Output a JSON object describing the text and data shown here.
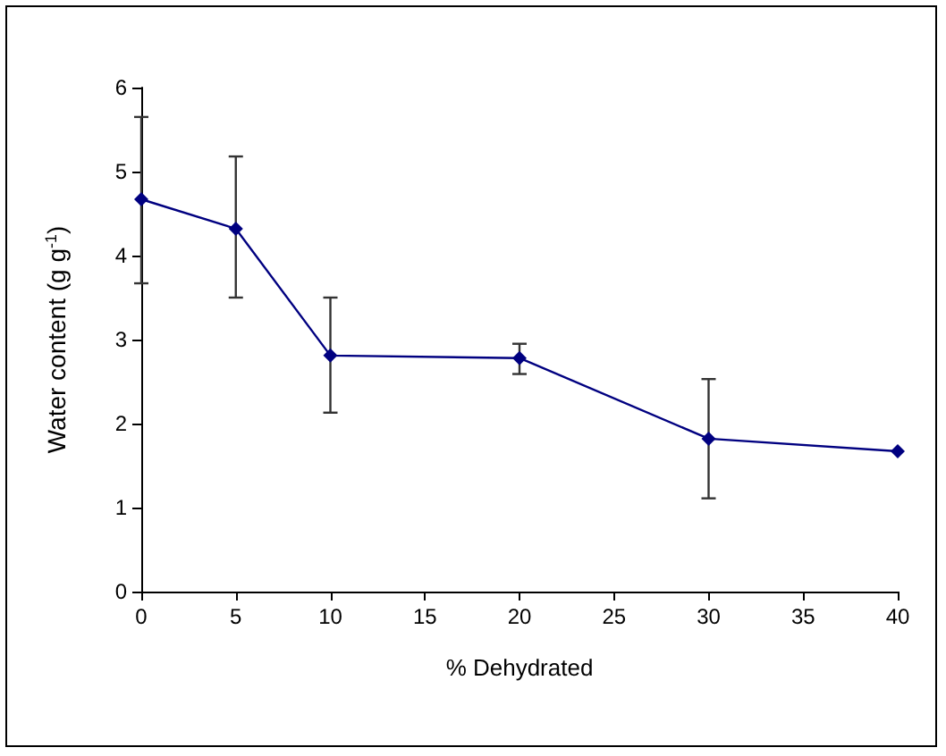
{
  "chart_data": {
    "type": "line",
    "xlabel": "% Dehydrated",
    "ylabel": "Water content (g g$^{-1}$)",
    "x": [
      0,
      5,
      10,
      20,
      30,
      40
    ],
    "series": [
      {
        "color": "#000080",
        "values": [
          4.67,
          4.32,
          2.81,
          2.78,
          1.82,
          1.67
        ],
        "errors": [
          [
            3.67,
            5.65
          ],
          [
            3.5,
            5.18
          ],
          [
            2.13,
            3.5
          ],
          [
            2.59,
            2.95
          ],
          [
            1.11,
            2.53
          ],
          null
        ]
      }
    ],
    "xlim": [
      0,
      40
    ],
    "xticks": [
      0,
      5,
      10,
      15,
      20,
      25,
      30,
      35,
      40
    ],
    "ylim": [
      0,
      6
    ],
    "yticks": [
      0,
      1,
      2,
      3,
      4,
      5,
      6
    ],
    "grid": false,
    "marker": "diamond",
    "line_style": "solid"
  }
}
